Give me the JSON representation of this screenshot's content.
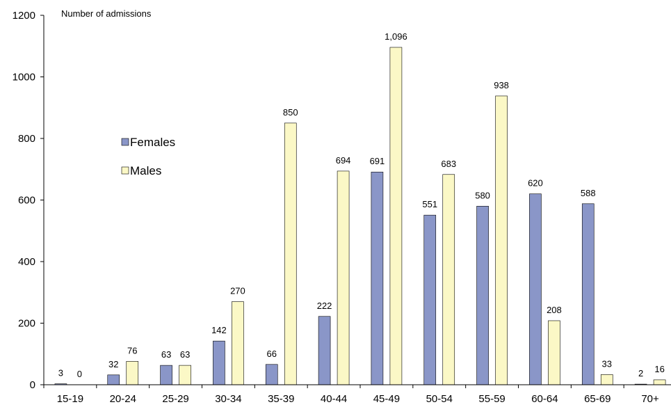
{
  "chart_data": {
    "type": "bar",
    "title": "",
    "xlabel": "",
    "ylabel": "Number of admissions",
    "ylim": [
      0,
      1200
    ],
    "yticks": [
      0,
      200,
      400,
      600,
      800,
      1000,
      1200
    ],
    "grid": false,
    "legend_position": "left-center",
    "categories": [
      "15-19",
      "20-24",
      "25-29",
      "30-34",
      "35-39",
      "40-44",
      "45-49",
      "50-54",
      "55-59",
      "60-64",
      "65-69",
      "70+"
    ],
    "series": [
      {
        "name": "Females",
        "color": "#8a96c8",
        "values": [
          3,
          32,
          63,
          142,
          66,
          222,
          691,
          551,
          580,
          620,
          588,
          2
        ],
        "labels": [
          "3",
          "32",
          "63",
          "142",
          "66",
          "222",
          "691",
          "551",
          "580",
          "620",
          "588",
          "2"
        ]
      },
      {
        "name": "Males",
        "color": "#fbf8c6",
        "values": [
          0,
          76,
          63,
          270,
          850,
          694,
          1096,
          683,
          938,
          208,
          33,
          16
        ],
        "labels": [
          "0",
          "76",
          "63",
          "270",
          "850",
          "694",
          "1,096",
          "683",
          "938",
          "208",
          "33",
          "16"
        ]
      }
    ]
  }
}
